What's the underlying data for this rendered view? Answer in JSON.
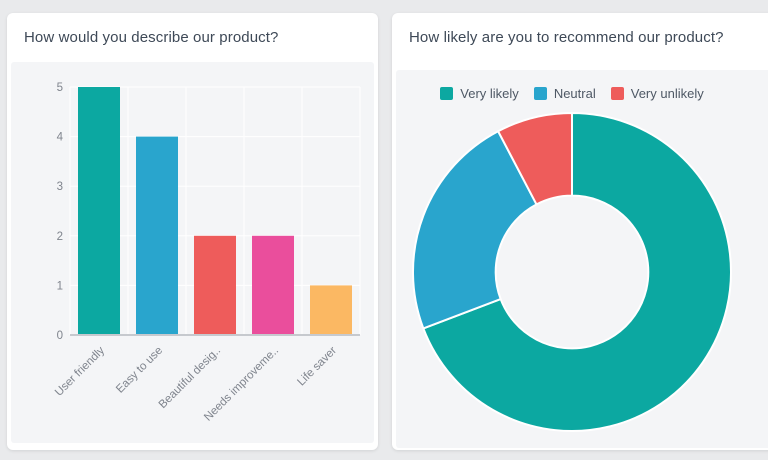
{
  "page": {
    "background": "#e9eaec",
    "card_background": "#ffffff",
    "panel_background": "#f4f5f7"
  },
  "left_card": {
    "title": "How would you describe our product?"
  },
  "right_card": {
    "title": "How likely are you to recommend our product?"
  },
  "chart_data": [
    {
      "type": "bar",
      "title": "How would you describe our product?",
      "categories": [
        "User friendly",
        "Easy to use",
        "Beautiful desig..",
        "Needs improveme..",
        "Life saver"
      ],
      "values": [
        5,
        4,
        2,
        2,
        1
      ],
      "colors": [
        "#0ca8a1",
        "#29a5cd",
        "#ee5c5b",
        "#ea4e9c",
        "#fbb863"
      ],
      "xlabel": "",
      "ylabel": "",
      "ylim": [
        0,
        5
      ],
      "yticks": [
        0,
        1,
        2,
        3,
        4,
        5
      ],
      "grid": true,
      "gridline_color": "#ffffff",
      "baseline_color": "#c6c9ce",
      "tick_label_color": "#7f848d",
      "x_label_rotation": -45
    },
    {
      "type": "pie",
      "style": "donut",
      "cutout": 0.48,
      "title": "How likely are you to recommend our product?",
      "labels": [
        "Very likely",
        "Neutral",
        "Very unlikely"
      ],
      "values": [
        9,
        3,
        1
      ],
      "colors": [
        "#0ca8a1",
        "#29a5cd",
        "#ee5c5b"
      ],
      "legend_position": "top",
      "segment_border_color": "#ffffff"
    }
  ]
}
